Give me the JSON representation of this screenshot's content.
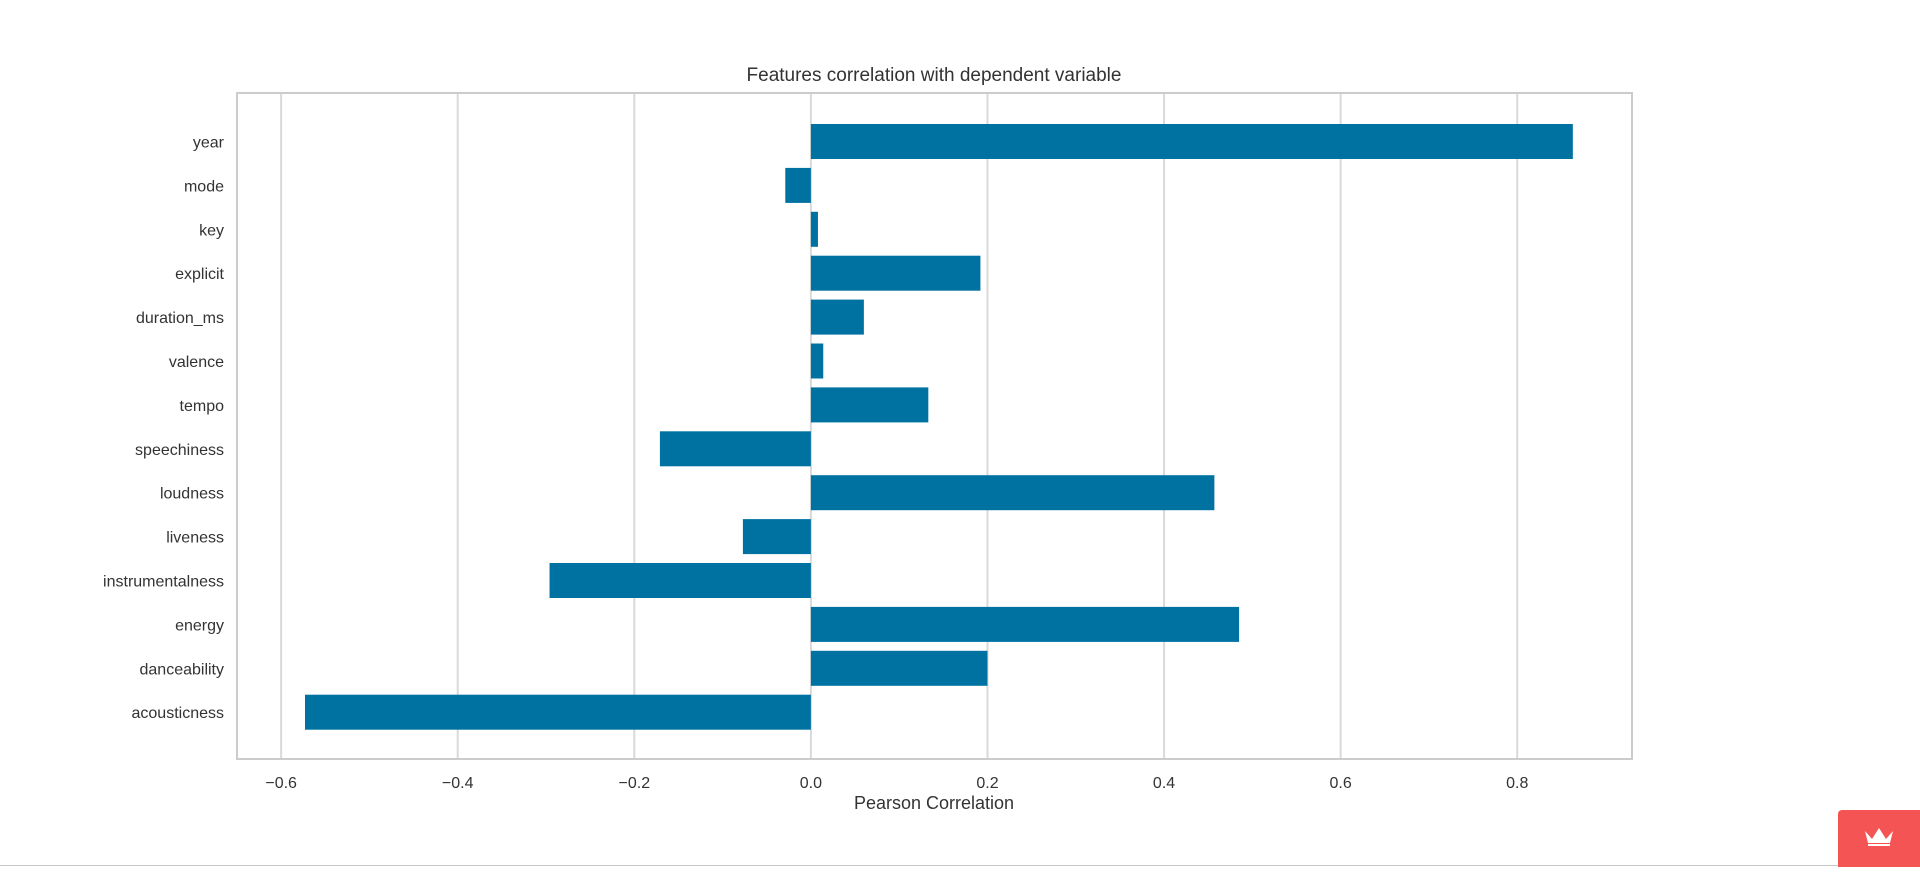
{
  "chart_data": {
    "type": "bar",
    "orientation": "horizontal",
    "title": "Features correlation with dependent variable",
    "xlabel": "Pearson Correlation",
    "ylabel": "",
    "xlim": [
      -0.65,
      0.93
    ],
    "xticks": [
      -0.6,
      -0.4,
      -0.2,
      0.0,
      0.2,
      0.4,
      0.6,
      0.8
    ],
    "xtick_labels": [
      "−0.6",
      "−0.4",
      "−0.2",
      "0.0",
      "0.2",
      "0.4",
      "0.6",
      "0.8"
    ],
    "grid": true,
    "bar_color": "#0072a2",
    "categories": [
      "year",
      "mode",
      "key",
      "explicit",
      "duration_ms",
      "valence",
      "tempo",
      "speechiness",
      "loudness",
      "liveness",
      "instrumentalness",
      "energy",
      "danceability",
      "acousticness"
    ],
    "values": [
      0.863,
      -0.029,
      0.008,
      0.192,
      0.06,
      0.014,
      0.133,
      -0.171,
      0.457,
      -0.077,
      -0.296,
      0.485,
      0.2,
      -0.573
    ]
  },
  "ui": {
    "crown_icon": "crown-icon",
    "crown_color": "#f55454"
  }
}
